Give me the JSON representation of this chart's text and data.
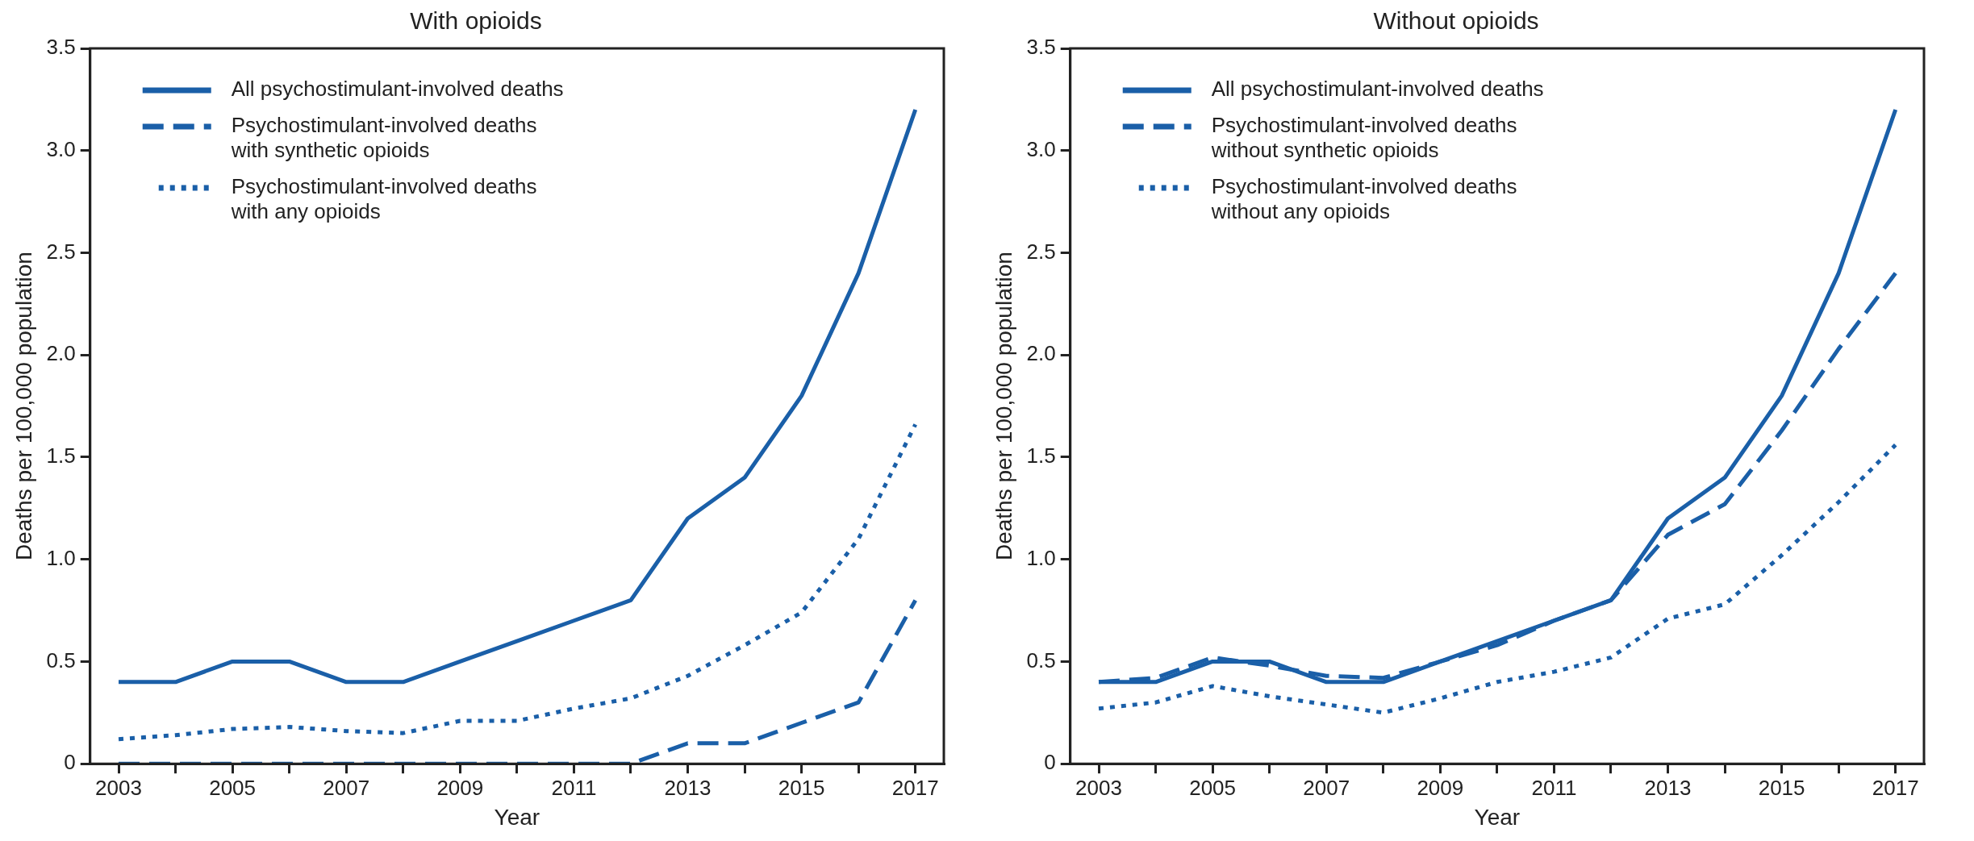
{
  "chart_data": [
    {
      "type": "line",
      "title": "With opioids",
      "xlabel": "Year",
      "ylabel": "Deaths per 100,000 population",
      "categories": [
        "2003",
        null,
        "2005",
        null,
        "2007",
        null,
        "2009",
        null,
        "2011",
        null,
        "2013",
        null,
        "2015",
        null,
        "2017"
      ],
      "ylim": [
        0,
        3.5
      ],
      "yticks": [
        0,
        0.5,
        {
          "value": 1,
          "label": "1.0"
        },
        1.5,
        {
          "value": 2,
          "label": "2.0"
        },
        2.5,
        {
          "value": 3,
          "label": "3.0"
        },
        3.5
      ],
      "grid": false,
      "legend": "top left",
      "marker": "none",
      "series": [
        {
          "name": "All psychostimulant-involved deaths",
          "color": "#1a5fa8",
          "line_style": "solid",
          "values": [
            0.4,
            0.4,
            0.5,
            0.5,
            0.4,
            0.4,
            0.5,
            0.6,
            0.7,
            0.8,
            1.2,
            1.4,
            1.8,
            2.4,
            3.2
          ]
        },
        {
          "name": "Psychostimulant-involved deaths with synthetic opioids",
          "color": "#1a5fa8",
          "line_style": "dashed",
          "values": [
            0,
            0,
            0,
            0,
            0,
            0,
            0,
            0,
            0,
            0,
            0.1,
            0.1,
            0.2,
            0.3,
            0.8
          ]
        },
        {
          "name": "Psychostimulant-involved deaths with any opioids",
          "color": "#1a5fa8",
          "line_style": "dotted",
          "values": [
            0.12,
            0.14,
            0.17,
            0.18,
            0.16,
            0.15,
            0.21,
            0.21,
            0.27,
            0.32,
            0.43,
            0.58,
            0.74,
            1.1,
            1.66
          ]
        }
      ]
    },
    {
      "type": "line",
      "title": "Without opioids",
      "xlabel": "Year",
      "ylabel": "Deaths per 100,000 population",
      "categories": [
        "2003",
        null,
        "2005",
        null,
        "2007",
        null,
        "2009",
        null,
        "2011",
        null,
        "2013",
        null,
        "2015",
        null,
        "2017"
      ],
      "ylim": [
        0,
        3.5
      ],
      "yticks": [
        0,
        0.5,
        {
          "value": 1,
          "label": "1.0"
        },
        1.5,
        {
          "value": 2,
          "label": "2.0"
        },
        2.5,
        {
          "value": 3,
          "label": "3.0"
        },
        3.5
      ],
      "grid": false,
      "legend": "top left",
      "marker": "none",
      "series": [
        {
          "name": "All psychostimulant-involved deaths",
          "color": "#1a5fa8",
          "line_style": "solid",
          "values": [
            0.4,
            0.4,
            0.5,
            0.5,
            0.4,
            0.4,
            0.5,
            0.6,
            0.7,
            0.8,
            1.2,
            1.4,
            1.8,
            2.4,
            3.2
          ]
        },
        {
          "name": "Psychostimulant-involved deaths without synthetic opioids",
          "color": "#1a5fa8",
          "line_style": "dashed",
          "values": [
            0.4,
            0.42,
            0.52,
            0.48,
            0.43,
            0.42,
            0.5,
            0.58,
            0.7,
            0.8,
            1.12,
            1.27,
            1.63,
            2.03,
            2.4
          ]
        },
        {
          "name": "Psychostimulant-involved deaths without any opioids",
          "color": "#1a5fa8",
          "line_style": "dotted",
          "values": [
            0.27,
            0.3,
            0.38,
            0.33,
            0.29,
            0.25,
            0.32,
            0.4,
            0.45,
            0.52,
            0.71,
            0.78,
            1.02,
            1.28,
            1.56
          ]
        }
      ]
    }
  ]
}
